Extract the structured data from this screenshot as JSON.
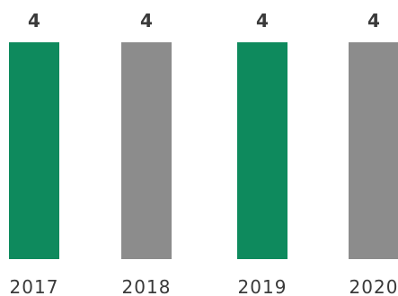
{
  "chart_data": {
    "type": "bar",
    "categories": [
      "2017",
      "2018",
      "2019",
      "2020"
    ],
    "values": [
      4,
      4,
      4,
      4
    ],
    "data_labels": [
      "4",
      "4",
      "4",
      "4"
    ],
    "bar_colors": [
      "#0e8a5d",
      "#8c8c8c",
      "#0e8a5d",
      "#8c8c8c"
    ],
    "title": "",
    "xlabel": "",
    "ylabel": "",
    "ylim": [
      0,
      4
    ],
    "grid": false,
    "legend": "none"
  }
}
